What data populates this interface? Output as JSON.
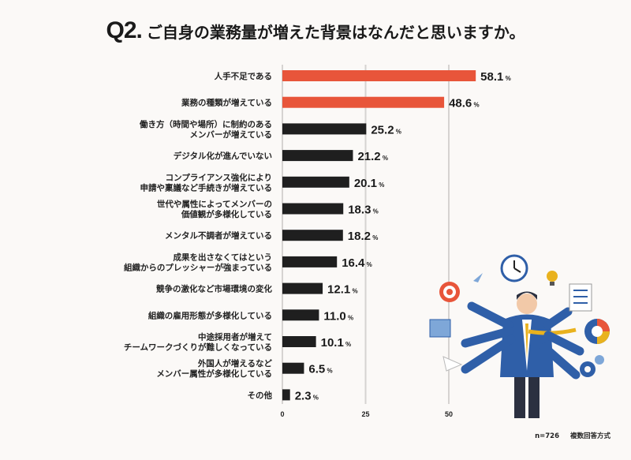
{
  "title": {
    "q": "Q2.",
    "text": "ご自身の業務量が増えた背景はなんだと思いますか。"
  },
  "footnote": {
    "n": "n=726",
    "method": "複数回答方式"
  },
  "chart_data": {
    "type": "bar",
    "orientation": "horizontal",
    "title": "ご自身の業務量が増えた背景はなんだと思いますか。",
    "unit": "%",
    "categories": [
      [
        "人手不足である"
      ],
      [
        "業務の種類が増えている"
      ],
      [
        "働き方（時間や場所）に制約のある",
        "メンバーが増えている"
      ],
      [
        "デジタル化が進んでいない"
      ],
      [
        "コンプライアンス強化により",
        "申請や稟議など手続きが増えている"
      ],
      [
        "世代や属性によってメンバーの",
        "価値観が多様化している"
      ],
      [
        "メンタル不調者が増えている"
      ],
      [
        "成果を出さなくてはという",
        "組織からのプレッシャーが強まっている"
      ],
      [
        "競争の激化など市場環境の変化"
      ],
      [
        "組織の雇用形態が多様化している"
      ],
      [
        "中途採用者が増えて",
        "チームワークづくりが難しくなっている"
      ],
      [
        "外国人が増えるなど",
        "メンバー属性が多様化している"
      ],
      [
        "その他"
      ]
    ],
    "values": [
      58.1,
      48.6,
      25.2,
      21.2,
      20.1,
      18.3,
      18.2,
      16.4,
      12.1,
      11.0,
      10.1,
      6.5,
      2.3
    ],
    "value_labels": [
      "58.1",
      "48.6",
      "25.2",
      "21.2",
      "20.1",
      "18.3",
      "18.2",
      "16.4",
      "12.1",
      "11.0",
      "10.1",
      "6.5",
      "2.3"
    ],
    "highlight_count": 2,
    "xticks": [
      0,
      25,
      50
    ],
    "xtick_labels": [
      "0",
      "25",
      "50"
    ],
    "xlim": [
      0,
      60
    ],
    "grid": true,
    "colors": {
      "highlight": "#e8553a",
      "default": "#1f1f1f",
      "grid": "#d6d3d1"
    }
  }
}
